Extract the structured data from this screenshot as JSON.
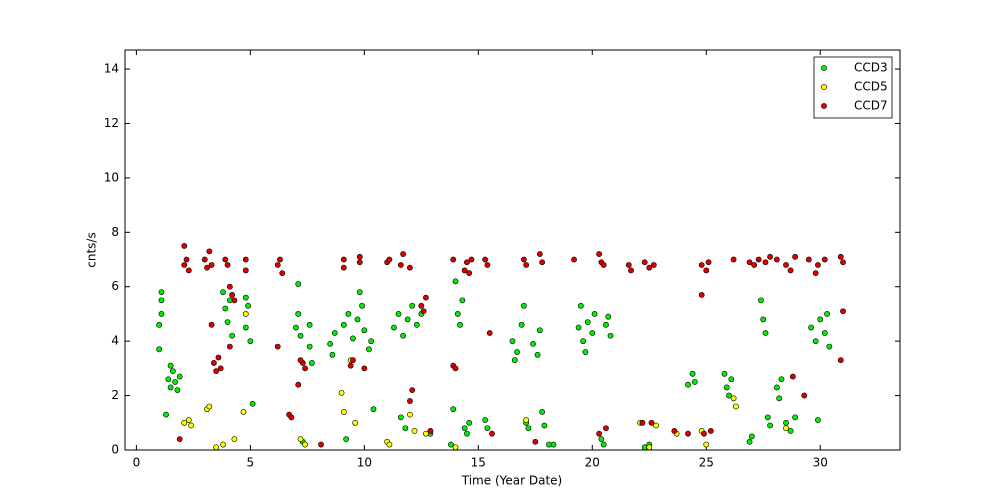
{
  "chart_data": {
    "type": "scatter",
    "x_label": "Time (Year Date)",
    "y_label": "cnts/s",
    "xlim": [
      -0.5,
      33.5
    ],
    "xticks": [
      0,
      5,
      10,
      15,
      20,
      25,
      30
    ],
    "ylim": [
      0,
      14.7
    ],
    "yticks": [
      0,
      2,
      4,
      6,
      8,
      10,
      12,
      14
    ],
    "legend": "upper right",
    "series": [
      {
        "name": "CCD3",
        "color": "#00ee00",
        "x": [
          1.1,
          1.1,
          1.1,
          1.0,
          1.0,
          1.4,
          1.5,
          1.6,
          1.7,
          1.8,
          1.9,
          1.5,
          1.3,
          3.9,
          4.0,
          4.1,
          4.2,
          3.8,
          4.8,
          4.9,
          5.0,
          4.8,
          5.1,
          7.0,
          7.1,
          7.2,
          7.1,
          7.3,
          7.6,
          7.7,
          7.6,
          8.5,
          8.6,
          8.7,
          9.1,
          9.3,
          9.5,
          9.7,
          9.9,
          10.0,
          10.2,
          10.3,
          9.8,
          9.2,
          10.4,
          11.3,
          11.5,
          11.7,
          11.9,
          12.1,
          12.3,
          12.5,
          11.8,
          11.6,
          12.9,
          13.8,
          13.9,
          14.1,
          14.2,
          14.3,
          14.0,
          14.4,
          14.6,
          14.5,
          15.3,
          15.4,
          16.5,
          16.7,
          16.9,
          17.0,
          16.6,
          17.1,
          17.2,
          17.4,
          17.6,
          17.7,
          17.8,
          17.9,
          18.1,
          18.3,
          19.4,
          19.6,
          19.8,
          20.0,
          19.5,
          19.7,
          20.1,
          20.4,
          20.5,
          20.6,
          20.7,
          20.8,
          22.3,
          22.5,
          24.2,
          24.4,
          24.5,
          25.9,
          26.0,
          26.1,
          25.8,
          27.0,
          26.9,
          27.5,
          27.6,
          27.4,
          27.8,
          27.7,
          28.1,
          28.2,
          28.3,
          28.5,
          28.7,
          28.9,
          29.6,
          29.8,
          30.0,
          30.2,
          30.4,
          30.3,
          29.9
        ],
        "values": [
          5.0,
          5.5,
          5.8,
          4.6,
          3.7,
          2.6,
          2.3,
          2.9,
          2.5,
          2.2,
          2.7,
          3.1,
          1.3,
          5.2,
          4.7,
          5.5,
          4.2,
          5.8,
          4.5,
          5.3,
          4.0,
          5.6,
          1.7,
          4.5,
          5.0,
          4.2,
          6.1,
          0.3,
          3.8,
          3.2,
          4.6,
          3.9,
          3.5,
          4.3,
          4.6,
          5.0,
          4.1,
          4.8,
          5.3,
          4.4,
          3.7,
          4.0,
          5.8,
          0.4,
          1.5,
          4.5,
          5.0,
          4.2,
          4.8,
          5.3,
          4.6,
          5.0,
          0.8,
          1.2,
          0.6,
          0.2,
          1.5,
          5.0,
          4.6,
          5.5,
          6.2,
          0.8,
          1.0,
          0.6,
          1.1,
          0.8,
          4.0,
          3.6,
          4.6,
          5.3,
          3.3,
          1.0,
          0.8,
          3.9,
          3.5,
          4.4,
          1.4,
          0.9,
          0.2,
          0.2,
          4.5,
          4.0,
          4.7,
          4.3,
          5.3,
          3.6,
          5.0,
          0.4,
          0.2,
          4.6,
          4.9,
          4.2,
          0.1,
          0.2,
          2.4,
          2.8,
          2.5,
          2.3,
          2.0,
          2.6,
          2.8,
          0.5,
          0.3,
          4.8,
          4.3,
          5.5,
          0.9,
          1.2,
          2.3,
          1.9,
          2.6,
          1.0,
          0.7,
          1.2,
          4.5,
          4.0,
          4.8,
          4.3,
          3.8,
          5.0,
          1.1
        ]
      },
      {
        "name": "CCD5",
        "color": "#ffff00",
        "x": [
          2.1,
          2.3,
          2.4,
          3.1,
          3.2,
          3.5,
          3.8,
          4.3,
          4.7,
          4.8,
          7.2,
          7.4,
          9.0,
          9.1,
          9.6,
          9.4,
          11.0,
          11.1,
          12.0,
          12.2,
          12.7,
          14.0,
          17.1,
          22.1,
          22.5,
          22.8,
          23.7,
          24.8,
          25.0,
          26.2,
          26.3,
          28.5
        ],
        "values": [
          1.0,
          1.1,
          0.9,
          1.5,
          1.6,
          0.1,
          0.2,
          0.4,
          1.4,
          5.0,
          0.4,
          0.2,
          2.1,
          1.4,
          1.0,
          3.3,
          0.3,
          0.2,
          1.3,
          0.7,
          0.6,
          0.1,
          1.1,
          1.0,
          0.1,
          0.9,
          0.6,
          0.7,
          0.2,
          1.9,
          1.6,
          0.8
        ]
      },
      {
        "name": "CCD7",
        "color": "#dd0000",
        "x": [
          2.1,
          2.2,
          2.3,
          2.1,
          1.9,
          3.0,
          3.1,
          3.2,
          3.3,
          3.4,
          3.5,
          3.6,
          3.7,
          3.3,
          3.9,
          4.0,
          4.2,
          4.3,
          4.1,
          4.1,
          4.8,
          4.8,
          6.2,
          6.4,
          6.3,
          6.2,
          6.7,
          6.8,
          7.3,
          7.4,
          7.2,
          7.1,
          8.1,
          9.1,
          9.1,
          9.4,
          9.5,
          9.8,
          9.8,
          10.0,
          11.0,
          11.1,
          11.6,
          11.7,
          12.0,
          12.0,
          12.1,
          12.5,
          12.6,
          12.9,
          12.7,
          13.9,
          14.0,
          13.9,
          14.4,
          14.5,
          14.6,
          14.7,
          15.3,
          15.4,
          15.6,
          15.5,
          17.0,
          17.1,
          17.7,
          17.8,
          17.5,
          19.2,
          20.3,
          20.4,
          20.5,
          20.3,
          20.6,
          21.6,
          21.7,
          22.3,
          22.5,
          22.7,
          22.2,
          22.6,
          23.6,
          24.2,
          24.8,
          25.0,
          25.1,
          24.8,
          24.9,
          25.2,
          26.2,
          26.9,
          27.1,
          27.3,
          27.6,
          27.8,
          28.1,
          28.5,
          28.7,
          28.9,
          29.5,
          29.9,
          30.2,
          30.9,
          31.0,
          31.0,
          30.9,
          29.3,
          28.8,
          29.8
        ],
        "values": [
          6.8,
          7.0,
          6.6,
          7.5,
          0.4,
          7.0,
          6.7,
          7.3,
          6.8,
          3.2,
          2.9,
          3.4,
          3.0,
          4.6,
          7.0,
          6.8,
          5.7,
          5.5,
          6.0,
          3.8,
          7.0,
          6.6,
          6.8,
          6.5,
          7.0,
          3.8,
          1.3,
          1.2,
          3.2,
          3.0,
          3.3,
          2.4,
          0.2,
          7.0,
          6.7,
          3.1,
          3.3,
          6.9,
          7.1,
          3.0,
          6.9,
          7.0,
          6.8,
          7.2,
          6.7,
          1.8,
          2.2,
          5.3,
          5.1,
          0.7,
          5.6,
          3.1,
          3.0,
          7.0,
          6.6,
          6.9,
          6.5,
          7.0,
          7.0,
          6.8,
          0.6,
          4.3,
          7.0,
          6.8,
          7.2,
          6.9,
          0.3,
          7.0,
          7.2,
          6.9,
          6.8,
          0.6,
          0.8,
          6.8,
          6.6,
          6.9,
          6.7,
          6.8,
          1.0,
          1.0,
          0.7,
          0.6,
          6.8,
          6.6,
          6.9,
          5.7,
          0.6,
          0.7,
          7.0,
          6.9,
          6.8,
          7.0,
          6.9,
          7.1,
          7.0,
          6.8,
          6.6,
          7.1,
          7.0,
          6.8,
          7.0,
          7.1,
          6.9,
          5.1,
          3.3,
          2.0,
          2.7,
          6.5
        ]
      }
    ]
  }
}
